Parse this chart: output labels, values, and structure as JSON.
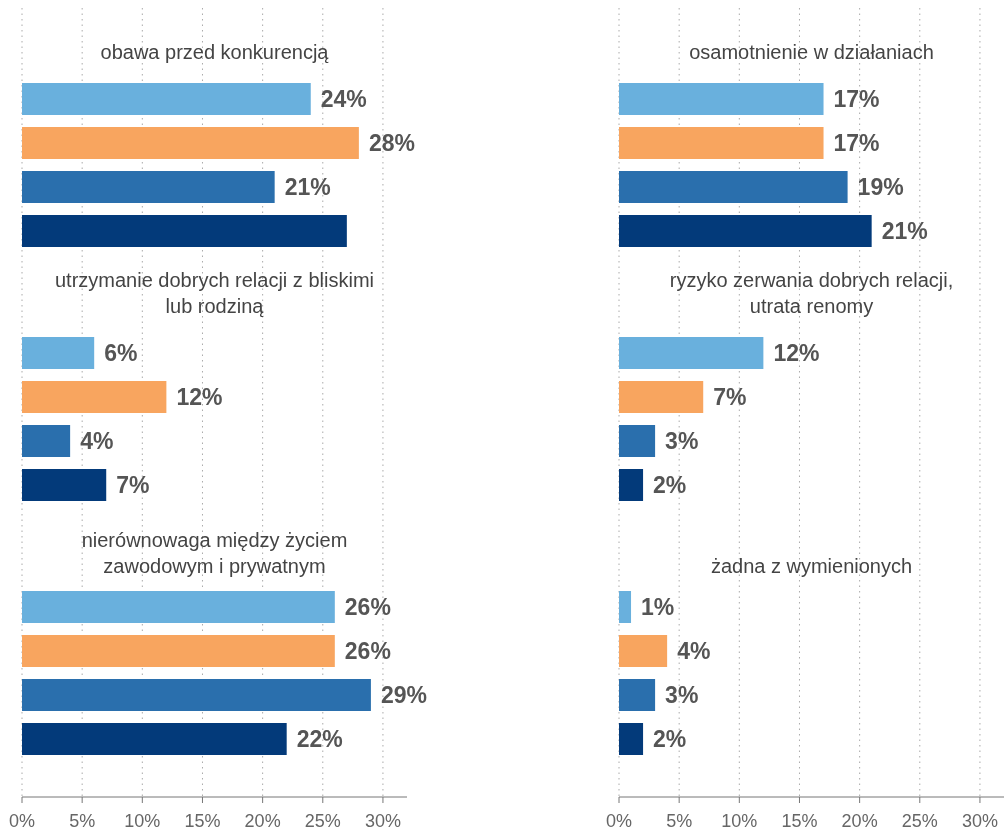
{
  "chart_data": [
    {
      "type": "bar",
      "orientation": "horizontal",
      "categories": [
        "obawa przed konkurencją",
        "utrzymanie dobrych relacji z bliskimi\nlub rodziną",
        "nierównowaga między życiem\nzawodowym i prywatnym"
      ],
      "series": [
        {
          "color": "#69b0dd",
          "values": [
            24,
            6,
            26
          ],
          "value_labels": [
            "24%",
            "6%",
            "26%"
          ]
        },
        {
          "color": "#f8a55f",
          "values": [
            28,
            12,
            26
          ],
          "value_labels": [
            "28%",
            "12%",
            "26%"
          ]
        },
        {
          "color": "#2a6fad",
          "values": [
            21,
            4,
            29
          ],
          "value_labels": [
            "21%",
            "4%",
            "29%"
          ]
        },
        {
          "color": "#033a7a",
          "values": [
            27,
            7,
            22
          ],
          "value_labels": [
            null,
            "7%",
            "22%"
          ]
        }
      ],
      "xlim": [
        0,
        32
      ],
      "xticks": [
        {
          "value": 0,
          "label": "0%"
        },
        {
          "value": 5,
          "label": "5%"
        },
        {
          "value": 10,
          "label": "10%"
        },
        {
          "value": 15,
          "label": "15%"
        },
        {
          "value": 20,
          "label": "20%"
        },
        {
          "value": 25,
          "label": "25%"
        },
        {
          "value": 30,
          "label": "30%"
        }
      ],
      "grid": "x"
    },
    {
      "type": "bar",
      "orientation": "horizontal",
      "categories": [
        "osamotnienie w działaniach",
        "ryzyko zerwania dobrych relacji,\nutrata renomy",
        "żadna z wymienionych"
      ],
      "series": [
        {
          "color": "#69b0dd",
          "values": [
            17,
            12,
            1
          ],
          "value_labels": [
            "17%",
            "12%",
            "1%"
          ]
        },
        {
          "color": "#f8a55f",
          "values": [
            17,
            7,
            4
          ],
          "value_labels": [
            "17%",
            "7%",
            "4%"
          ]
        },
        {
          "color": "#2a6fad",
          "values": [
            19,
            3,
            3
          ],
          "value_labels": [
            "19%",
            "3%",
            "3%"
          ]
        },
        {
          "color": "#033a7a",
          "values": [
            21,
            2,
            2
          ],
          "value_labels": [
            "21%",
            "2%",
            "2%"
          ]
        }
      ],
      "xlim": [
        0,
        32
      ],
      "xticks": [
        {
          "value": 0,
          "label": "0%"
        },
        {
          "value": 5,
          "label": "5%"
        },
        {
          "value": 10,
          "label": "10%"
        },
        {
          "value": 15,
          "label": "15%"
        },
        {
          "value": 20,
          "label": "20%"
        },
        {
          "value": 25,
          "label": "25%"
        },
        {
          "value": 30,
          "label": "30%"
        }
      ],
      "grid": "x"
    }
  ]
}
